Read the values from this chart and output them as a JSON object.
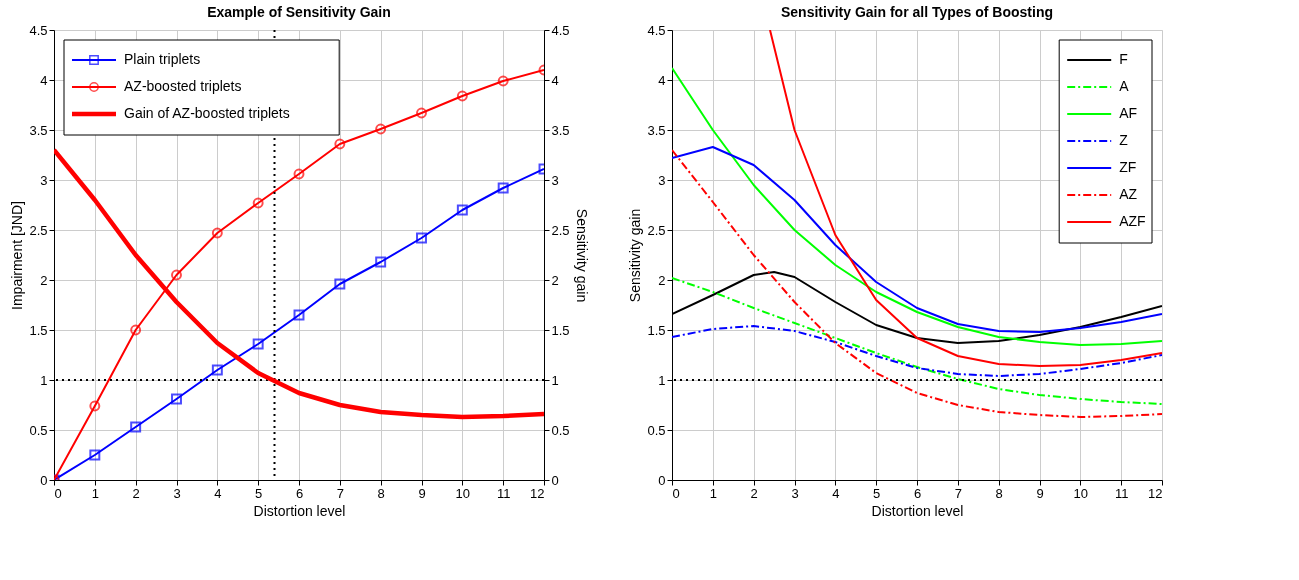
{
  "chart_data": [
    {
      "type": "line",
      "title": "Example of Sensitivity Gain",
      "xlabel": "Distortion level",
      "ylabel": "Impairment [JND]",
      "y2label": "Sensitivity gain",
      "x": [
        0,
        1,
        2,
        3,
        4,
        5,
        6,
        7,
        8,
        9,
        10,
        11,
        12
      ],
      "xlim": [
        0,
        12
      ],
      "xticks": [
        0,
        1,
        2,
        3,
        4,
        5,
        6,
        7,
        8,
        9,
        10,
        11,
        12
      ],
      "ylim": [
        0,
        4.5
      ],
      "yticks": [
        0,
        0.5,
        1,
        1.5,
        2,
        2.5,
        3,
        3.5,
        4,
        4.5
      ],
      "y2lim": [
        0,
        4.5
      ],
      "y2ticks": [
        0,
        0.5,
        1,
        1.5,
        2,
        2.5,
        3,
        3.5,
        4,
        4.5
      ],
      "grid": true,
      "legend": "top left",
      "series": [
        {
          "name": "Plain triplets",
          "color": "#0000ff",
          "marker": "square",
          "line_style": "solid",
          "values": [
            0,
            0.25,
            0.53,
            0.81,
            1.1,
            1.36,
            1.65,
            1.96,
            2.18,
            2.42,
            2.7,
            2.92,
            3.11
          ]
        },
        {
          "name": "AZ-boosted triplets",
          "color": "#ff0000",
          "marker": "circle",
          "line_style": "solid",
          "values": [
            0,
            0.74,
            1.5,
            2.05,
            2.47,
            2.77,
            3.06,
            3.36,
            3.51,
            3.67,
            3.84,
            3.99,
            4.1
          ]
        },
        {
          "name": "Gain of AZ-boosted triplets",
          "color": "#ff0000",
          "marker": "none",
          "line_style": "solid",
          "axis": "y2",
          "values": [
            3.3,
            2.8,
            2.25,
            1.78,
            1.37,
            1.07,
            0.87,
            0.75,
            0.68,
            0.65,
            0.63,
            0.64,
            0.66
          ]
        }
      ],
      "ref_lines": [
        {
          "axis": "x",
          "value": 5.4,
          "color": "#000000",
          "line_style": "dotted"
        },
        {
          "axis": "y",
          "value": 1,
          "color": "#000000",
          "line_style": "dotted"
        }
      ]
    },
    {
      "type": "line",
      "title": "Sensitivity Gain for all Types of Boosting",
      "xlabel": "Distortion level",
      "ylabel": "Sensitivity gain",
      "x": [
        0,
        1,
        2,
        3,
        4,
        5,
        6,
        7,
        8,
        9,
        10,
        11,
        12
      ],
      "xlim": [
        0,
        12
      ],
      "xticks": [
        0,
        1,
        2,
        3,
        4,
        5,
        6,
        7,
        8,
        9,
        10,
        11,
        12
      ],
      "ylim": [
        0,
        4.5
      ],
      "yticks": [
        0,
        0.5,
        1,
        1.5,
        2,
        2.5,
        3,
        3.5,
        4,
        4.5
      ],
      "grid": true,
      "legend": "top right",
      "marker": "none",
      "series": [
        {
          "name": "F",
          "color": "#000000",
          "line_style": "solid",
          "x": [
            0,
            1,
            2,
            2.5,
            3,
            4,
            5,
            6,
            7,
            8,
            9,
            10,
            11,
            12
          ],
          "values": [
            1.66,
            1.85,
            2.05,
            2.08,
            2.03,
            1.78,
            1.55,
            1.42,
            1.37,
            1.39,
            1.45,
            1.53,
            1.63,
            1.74
          ]
        },
        {
          "name": "A",
          "color": "#00ff00",
          "line_style": "dashdot",
          "values": [
            2.02,
            1.88,
            1.72,
            1.57,
            1.42,
            1.27,
            1.13,
            1.01,
            0.91,
            0.85,
            0.81,
            0.78,
            0.76
          ]
        },
        {
          "name": "AF",
          "color": "#00ff00",
          "line_style": "solid",
          "values": [
            4.12,
            3.5,
            2.95,
            2.5,
            2.15,
            1.88,
            1.68,
            1.53,
            1.43,
            1.38,
            1.35,
            1.36,
            1.39
          ]
        },
        {
          "name": "Z",
          "color": "#0000ff",
          "line_style": "dashdot",
          "values": [
            1.43,
            1.51,
            1.54,
            1.49,
            1.38,
            1.24,
            1.12,
            1.06,
            1.04,
            1.06,
            1.11,
            1.17,
            1.25
          ]
        },
        {
          "name": "ZF",
          "color": "#0000ff",
          "line_style": "solid",
          "values": [
            3.22,
            3.33,
            3.15,
            2.8,
            2.35,
            1.98,
            1.72,
            1.56,
            1.49,
            1.48,
            1.52,
            1.58,
            1.66
          ]
        },
        {
          "name": "AZ",
          "color": "#ff0000",
          "line_style": "dashdot",
          "values": [
            3.3,
            2.78,
            2.25,
            1.78,
            1.37,
            1.07,
            0.87,
            0.75,
            0.68,
            0.65,
            0.63,
            0.64,
            0.66
          ]
        },
        {
          "name": "AZF",
          "color": "#ff0000",
          "line_style": "solid",
          "x": [
            2.4,
            3,
            4,
            5,
            6,
            7,
            8,
            9,
            10,
            11,
            12
          ],
          "values": [
            4.5,
            3.5,
            2.45,
            1.8,
            1.42,
            1.24,
            1.16,
            1.14,
            1.15,
            1.2,
            1.27
          ]
        }
      ],
      "ref_lines": [
        {
          "axis": "y",
          "value": 1,
          "color": "#000000",
          "line_style": "dotted"
        }
      ]
    }
  ]
}
